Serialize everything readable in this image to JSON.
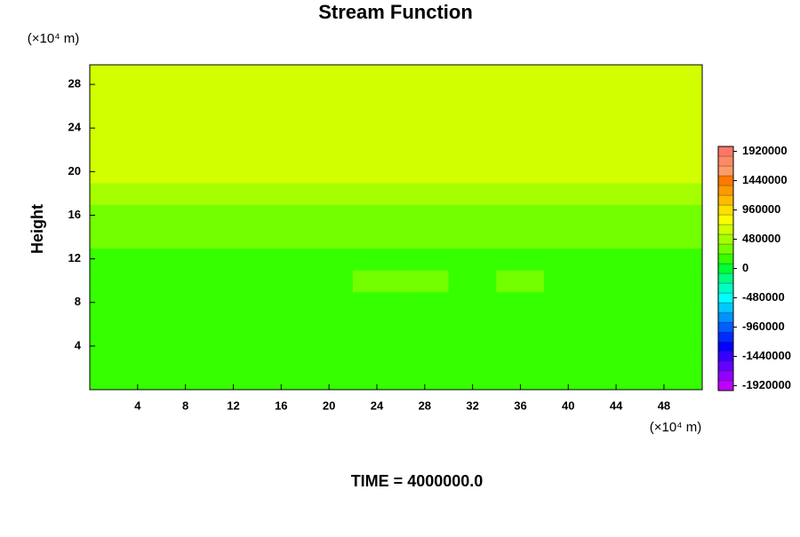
{
  "chart_data": {
    "type": "contour",
    "title": "Stream Function",
    "y_unit": "(×10⁴ m)",
    "x_unit": "(×10⁴ m)",
    "ylabel": "Height",
    "footer": "TIME = 4000000.0",
    "x": [
      0,
      4,
      8,
      12,
      16,
      20,
      24,
      28,
      32,
      36,
      40,
      44,
      48,
      52
    ],
    "y": [
      0,
      2,
      4,
      6,
      8,
      10,
      12,
      14,
      16,
      18,
      20,
      22,
      24,
      26,
      28,
      30
    ],
    "z": [
      [
        80000,
        80000,
        80000,
        80000,
        80000,
        80000,
        80000,
        80000,
        80000,
        80000,
        80000,
        80000,
        80000,
        80000
      ],
      [
        40000,
        40000,
        80000,
        80000,
        80000,
        80000,
        0,
        80000,
        80000,
        80000,
        80000,
        80000,
        80000,
        80000
      ],
      [
        0,
        0,
        80000,
        0,
        80000,
        80000,
        80000,
        80000,
        80000,
        80000,
        80000,
        80000,
        80000,
        80000
      ],
      [
        0,
        0,
        80000,
        80000,
        80000,
        80000,
        80000,
        80000,
        80000,
        80000,
        80000,
        80000,
        80000,
        80000
      ],
      [
        80000,
        80000,
        80000,
        80000,
        80000,
        80000,
        80000,
        80000,
        80000,
        80000,
        80000,
        80000,
        80000,
        80000
      ],
      [
        80000,
        80000,
        80000,
        80000,
        80000,
        80000,
        160000,
        160000,
        80000,
        160000,
        80000,
        80000,
        80000,
        80000
      ],
      [
        80000,
        80000,
        80000,
        80000,
        80000,
        80000,
        80000,
        80000,
        80000,
        80000,
        80000,
        80000,
        80000,
        80000
      ],
      [
        160000,
        160000,
        160000,
        160000,
        160000,
        160000,
        160000,
        160000,
        160000,
        160000,
        160000,
        160000,
        160000,
        160000
      ],
      [
        240000,
        240000,
        240000,
        240000,
        240000,
        240000,
        240000,
        240000,
        240000,
        240000,
        240000,
        160000,
        160000,
        240000
      ],
      [
        320000,
        320000,
        320000,
        320000,
        320000,
        320000,
        320000,
        320000,
        320000,
        320000,
        320000,
        320000,
        320000,
        320000
      ],
      [
        480000,
        480000,
        480000,
        480000,
        480000,
        480000,
        480000,
        480000,
        480000,
        480000,
        480000,
        480000,
        480000,
        480000
      ],
      [
        560000,
        560000,
        560000,
        560000,
        560000,
        560000,
        560000,
        560000,
        560000,
        560000,
        560000,
        560000,
        560000,
        560000
      ],
      [
        560000,
        560000,
        560000,
        560000,
        560000,
        560000,
        560000,
        560000,
        560000,
        560000,
        560000,
        560000,
        560000,
        560000
      ],
      [
        560000,
        560000,
        560000,
        560000,
        560000,
        560000,
        560000,
        560000,
        560000,
        560000,
        560000,
        560000,
        560000,
        560000
      ],
      [
        560000,
        560000,
        560000,
        560000,
        560000,
        560000,
        560000,
        560000,
        560000,
        560000,
        560000,
        560000,
        560000,
        560000
      ],
      [
        560000,
        560000,
        560000,
        560000,
        560000,
        560000,
        560000,
        560000,
        560000,
        560000,
        560000,
        560000,
        560000,
        560000
      ]
    ],
    "xlim": [
      0,
      51.2
    ],
    "ylim": [
      0,
      29.8
    ],
    "xticks": [
      4,
      8,
      12,
      16,
      20,
      24,
      28,
      32,
      36,
      40,
      44,
      48
    ],
    "yticks": [
      4,
      8,
      12,
      16,
      20,
      24,
      28
    ],
    "clim": [
      -2000000,
      2000000
    ],
    "level_step": 160000,
    "cticks": [
      -1920000,
      -1440000,
      -960000,
      -480000,
      0,
      480000,
      960000,
      1440000,
      1920000
    ]
  }
}
